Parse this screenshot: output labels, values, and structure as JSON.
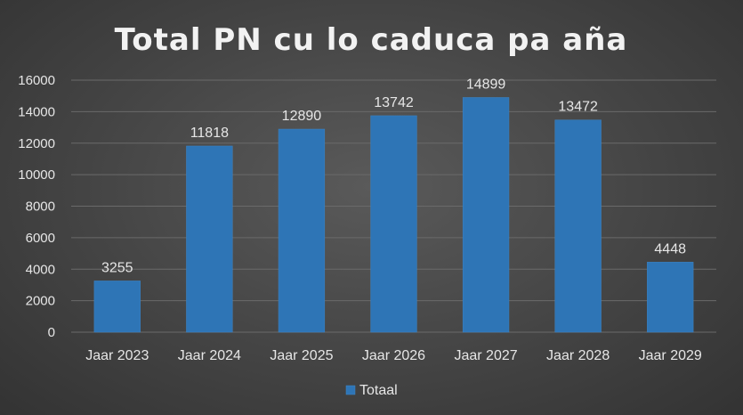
{
  "chart_data": {
    "type": "bar",
    "title": "Total PN cu lo caduca pa aña",
    "categories": [
      "Jaar 2023",
      "Jaar 2024",
      "Jaar 2025",
      "Jaar 2026",
      "Jaar 2027",
      "Jaar 2028",
      "Jaar 2029"
    ],
    "series": [
      {
        "name": "Totaal",
        "values": [
          3255,
          11818,
          12890,
          13742,
          14899,
          13472,
          4448
        ],
        "color": "#2e75b6"
      }
    ],
    "ylim": [
      0,
      16000
    ],
    "yticks": [
      0,
      2000,
      4000,
      6000,
      8000,
      10000,
      12000,
      14000,
      16000
    ],
    "grid": true,
    "legend_position": "bottom",
    "data_labels": true
  },
  "colors": {
    "background": "#444444",
    "bar": "#2e75b6",
    "text": "#e6e6e6",
    "gridline": "#6a6a6a"
  }
}
